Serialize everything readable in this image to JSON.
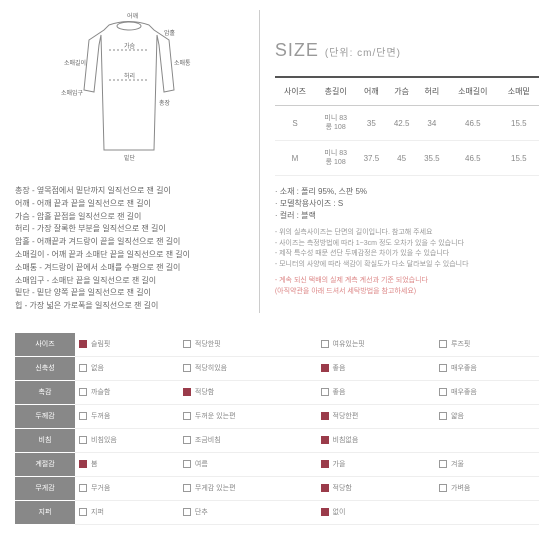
{
  "diagram": {
    "labels": [
      "어깨",
      "암홀",
      "가슴",
      "소매통",
      "소매길이",
      "허리",
      "총장",
      "소매입구",
      "밑단"
    ]
  },
  "descriptions": [
    "총장 - 옆목점에서 밑단까지 일직선으로 잰 길이",
    "어깨 - 어깨 끝과 끝을 일직선으로 잰 길이",
    "가슴 - 암홀 끝점을 일직선으로 잰 길이",
    "허리 - 가장 잘록한 부분을 일직선으로 잰 길이",
    "암홀 - 어깨끝과 겨드랑이 끝을 일직선으로 잰 길이",
    "소매길이 - 어깨 끝과 소매단 끝을 일직선으로 잰 길이",
    "소매통 - 겨드랑이 끝에서 소매를 수평으로 잰 길이",
    "소매입구 - 소매단 끝을 일직선으로 잰 길이",
    "밑단 - 밑단 양쪽 끝을 일직선으로 잰 길이",
    "힙 - 가장 넓은 가로폭을 일직선으로 잰 길이"
  ],
  "sizeTitle": "SIZE",
  "sizeUnit": "(단위: cm/단면)",
  "sizeTable": {
    "headers": [
      "사이즈",
      "총길이",
      "어깨",
      "가슴",
      "허리",
      "소매길이",
      "소매밑"
    ],
    "rows": [
      {
        "size": "S",
        "length": "미니 83\n롱 108",
        "shoulder": "35",
        "chest": "42.5",
        "waist": "34",
        "sleeve": "46.5",
        "cuff": "15.5"
      },
      {
        "size": "M",
        "length": "미니 83\n롱 108",
        "shoulder": "37.5",
        "chest": "45",
        "waist": "35.5",
        "sleeve": "46.5",
        "cuff": "15.5"
      }
    ]
  },
  "notes": {
    "main": [
      "소재 : 폴리 95%, 스판 5%",
      "모델착용사이즈 : S",
      "컬러 : 블랙"
    ],
    "sub": [
      "위의 실측사이즈는 단면의 길이입니다. 참고해 주세요",
      "사이즈는 측정방법에 따라 1~3cm 정도 오차가 있을 수 있습니다",
      "제작 특수성 때문 션단 두께감정은 차이가 있을 수 있습니다",
      "모니터의 사양에 따라 색감이 확실도가 다소 달라보일 수 있습니다"
    ],
    "pink": "계속 되신 택배의 실제 계측 계선과 기준 되었습니다\n(아직약관을 아래 드셔서 세탁방법을 참고하세요)"
  },
  "attributes": [
    {
      "name": "사이즈",
      "options": [
        {
          "label": "슬림핏",
          "checked": true
        },
        {
          "label": "적당한핏",
          "checked": false
        },
        {
          "label": "여유있는핏",
          "checked": false
        },
        {
          "label": "루즈핏",
          "checked": false
        }
      ]
    },
    {
      "name": "신축성",
      "options": [
        {
          "label": "없음",
          "checked": false
        },
        {
          "label": "적당히있음",
          "checked": false
        },
        {
          "label": "좋음",
          "checked": true
        },
        {
          "label": "매우좋음",
          "checked": false
        }
      ]
    },
    {
      "name": "촉감",
      "options": [
        {
          "label": "까슬함",
          "checked": false
        },
        {
          "label": "적당함",
          "checked": true
        },
        {
          "label": "좋음",
          "checked": false
        },
        {
          "label": "매우좋음",
          "checked": false
        }
      ]
    },
    {
      "name": "두께감",
      "options": [
        {
          "label": "두꺼움",
          "checked": false
        },
        {
          "label": "두꺼운 있는편",
          "checked": false
        },
        {
          "label": "적당한편",
          "checked": true
        },
        {
          "label": "얇음",
          "checked": false
        }
      ]
    },
    {
      "name": "비침",
      "options": [
        {
          "label": "비침있음",
          "checked": false
        },
        {
          "label": "조금비침",
          "checked": false
        },
        {
          "label": "비침없음",
          "checked": true
        },
        {
          "label": "",
          "checked": false
        }
      ]
    },
    {
      "name": "계절감",
      "options": [
        {
          "label": "봄",
          "checked": true
        },
        {
          "label": "여름",
          "checked": false
        },
        {
          "label": "가을",
          "checked": true
        },
        {
          "label": "겨울",
          "checked": false
        }
      ]
    },
    {
      "name": "무게감",
      "options": [
        {
          "label": "무거움",
          "checked": false
        },
        {
          "label": "무게감 있는편",
          "checked": false
        },
        {
          "label": "적당함",
          "checked": true
        },
        {
          "label": "가벼움",
          "checked": false
        }
      ]
    },
    {
      "name": "지퍼",
      "options": [
        {
          "label": "지퍼",
          "checked": false
        },
        {
          "label": "단추",
          "checked": false
        },
        {
          "label": "없이",
          "checked": true
        },
        {
          "label": "",
          "checked": false
        }
      ]
    }
  ],
  "colors": {
    "checked": "#9a3b4a",
    "headerBg": "#888888"
  }
}
